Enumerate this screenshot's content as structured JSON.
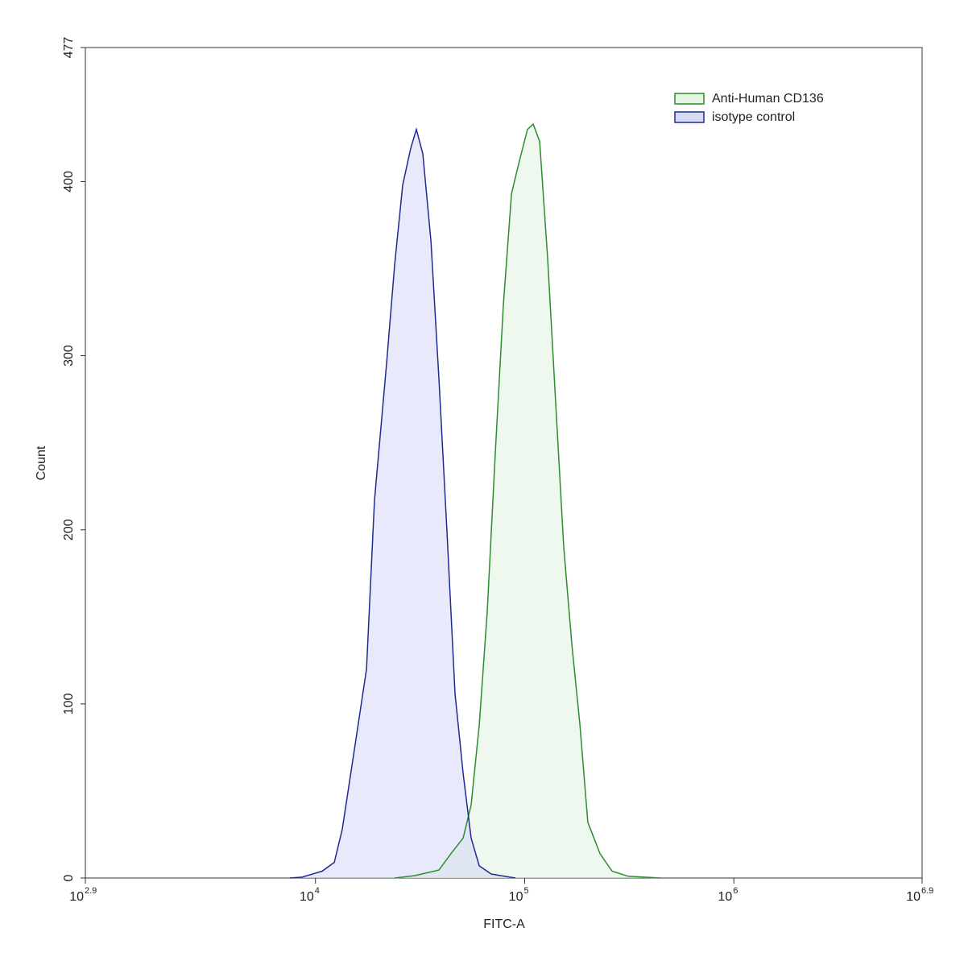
{
  "chart_data": {
    "type": "histogram-overlay",
    "xlabel": "FITC-A",
    "ylabel": "Count",
    "xscale": "log",
    "xlim": [
      794.33,
      7943282
    ],
    "xticks": [
      {
        "value": 794.33,
        "label": "10",
        "exponent": "2.9"
      },
      {
        "value": 10000,
        "label": "10",
        "exponent": "4"
      },
      {
        "value": 100000,
        "label": "10",
        "exponent": "5"
      },
      {
        "value": 1000000,
        "label": "10",
        "exponent": "6"
      },
      {
        "value": 7943282,
        "label": "10",
        "exponent": "6.9"
      }
    ],
    "ylim": [
      0,
      477
    ],
    "yticks": [
      0,
      100,
      200,
      300,
      400,
      477
    ],
    "legend": "top-right",
    "series": [
      {
        "name": "Anti-Human CD136",
        "color": "#2e8b2e",
        "fill": "#e3f4e3",
        "x": [
          23900,
          29850,
          38900,
          44460,
          50800,
          55460,
          60670,
          66240,
          72440,
          79070,
          86500,
          94400,
          103200,
          109900,
          118000,
          128800,
          140700,
          153800,
          168200,
          183700,
          200400,
          229100,
          261800,
          312600,
          445700
        ],
        "values": [
          0,
          1.4,
          4.6,
          14,
          23,
          42,
          88,
          153,
          245,
          329,
          393,
          412,
          430,
          433,
          423,
          356,
          273,
          190,
          134,
          88,
          32,
          14,
          4,
          1,
          0
        ]
      },
      {
        "name": "isotype control",
        "color": "#1f2a90",
        "fill": "#d8dbf6",
        "x": [
          7550,
          8630,
          10780,
          12300,
          13430,
          15350,
          17540,
          19150,
          21880,
          23900,
          26120,
          28510,
          30350,
          32580,
          35640,
          38900,
          42530,
          46460,
          50800,
          55460,
          60670,
          69200,
          90300
        ],
        "values": [
          0,
          0.5,
          4,
          9,
          28,
          74,
          120,
          217,
          296,
          352,
          398,
          419,
          430,
          416,
          366,
          287,
          199,
          106,
          60,
          23,
          7,
          2.3,
          0
        ]
      }
    ]
  }
}
